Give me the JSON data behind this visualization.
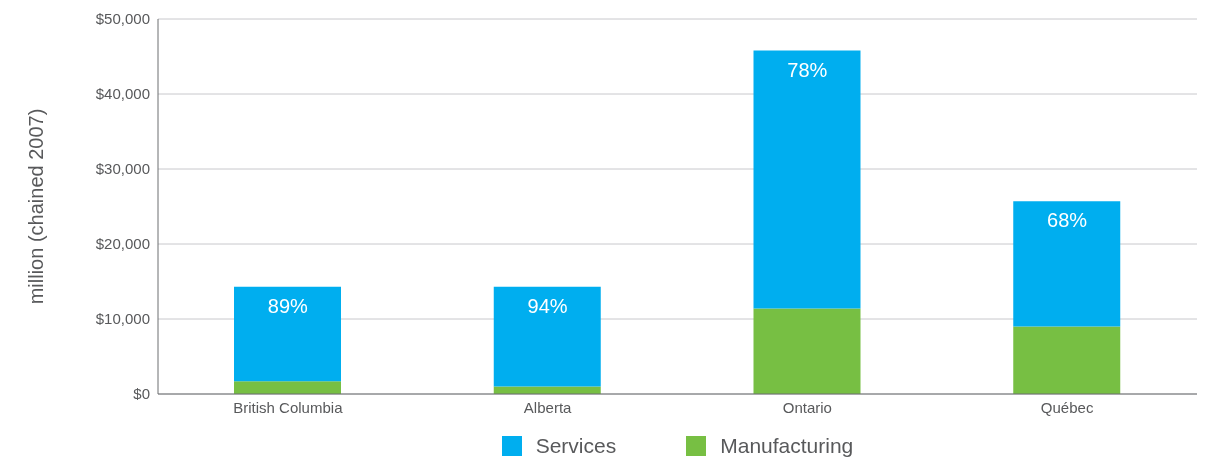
{
  "chart_data": {
    "type": "bar",
    "ylabel": "million (chained 2007)",
    "categories": [
      "British Columbia",
      "Alberta",
      "Ontario",
      "Québec"
    ],
    "stacked": true,
    "series": [
      {
        "name": "Manufacturing",
        "color": "#77bf43",
        "values": [
          1700,
          1000,
          11400,
          9000
        ]
      },
      {
        "name": "Services",
        "color": "#00aeef",
        "values": [
          12600,
          13300,
          34400,
          16700
        ]
      }
    ],
    "annotations": [
      {
        "text": "89%",
        "x": "British Columbia",
        "y": 14300
      },
      {
        "text": "94%",
        "x": "Alberta",
        "y": 14300
      },
      {
        "text": "78%",
        "x": "Ontario",
        "y": 45800
      },
      {
        "text": "68%",
        "x": "Québec",
        "y": 25700
      }
    ],
    "ylim": [
      0,
      50000
    ],
    "yticks": [
      {
        "value": 0,
        "label": "$0"
      },
      {
        "value": 10000,
        "label": "$10,000"
      },
      {
        "value": 20000,
        "label": "$20,000"
      },
      {
        "value": 30000,
        "label": "$30,000"
      },
      {
        "value": 40000,
        "label": "$40,000"
      },
      {
        "value": 50000,
        "label": "$50,000"
      }
    ],
    "grid": "y",
    "legend": "bottom"
  }
}
